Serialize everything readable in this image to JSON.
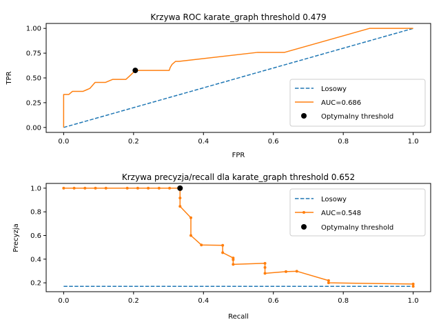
{
  "colors": {
    "random": "#1f77b4",
    "curve": "#ff7f0e",
    "optimal": "#000000"
  },
  "chart_data": [
    {
      "type": "line",
      "title": "Krzywa ROC karate_graph threshold  0.479",
      "xlabel": "FPR",
      "ylabel": "TPR",
      "xlim": [
        -0.05,
        1.05
      ],
      "ylim": [
        -0.05,
        1.05
      ],
      "xticks": [
        0.0,
        0.2,
        0.4,
        0.6,
        0.8,
        1.0
      ],
      "yticks": [
        0.0,
        0.25,
        0.5,
        0.75,
        1.0
      ],
      "xtick_labels": [
        "0.0",
        "0.2",
        "0.4",
        "0.6",
        "0.8",
        "1.0"
      ],
      "ytick_labels": [
        "0.00",
        "0.25",
        "0.50",
        "0.75",
        "1.00"
      ],
      "legend_position": "lower-right",
      "series": [
        {
          "name": "Losowy",
          "style": "dashed",
          "x": [
            0,
            1
          ],
          "y": [
            0,
            1
          ]
        },
        {
          "name": "AUC=0.686",
          "style": "solid",
          "x": [
            0,
            0,
            0.015,
            0.025,
            0.045,
            0.055,
            0.075,
            0.09,
            0.12,
            0.14,
            0.15,
            0.178,
            0.192,
            0.205,
            0.24,
            0.302,
            0.305,
            0.31,
            0.32,
            0.33,
            0.555,
            0.632,
            0.875,
            1.0
          ],
          "y": [
            0,
            0.333,
            0.333,
            0.364,
            0.364,
            0.364,
            0.394,
            0.455,
            0.455,
            0.485,
            0.485,
            0.485,
            0.53,
            0.576,
            0.576,
            0.576,
            0.606,
            0.636,
            0.667,
            0.667,
            0.758,
            0.758,
            1.0,
            1.0
          ]
        },
        {
          "name": "Optymalny threshold",
          "style": "point",
          "x": [
            0.205
          ],
          "y": [
            0.576
          ]
        }
      ]
    },
    {
      "type": "line",
      "title": "Krzywa precyzja/recall dla karate_graph threshold  0.652",
      "xlabel": "Recall",
      "ylabel": "Precyzja",
      "xlim": [
        -0.05,
        1.05
      ],
      "ylim": [
        0.125,
        1.04
      ],
      "xticks": [
        0.0,
        0.2,
        0.4,
        0.6,
        0.8,
        1.0
      ],
      "yticks": [
        0.2,
        0.4,
        0.6,
        0.8,
        1.0
      ],
      "xtick_labels": [
        "0.0",
        "0.2",
        "0.4",
        "0.6",
        "0.8",
        "1.0"
      ],
      "ytick_labels": [
        "0.2",
        "0.4",
        "0.6",
        "0.8",
        "1.0"
      ],
      "legend_position": "upper-right",
      "series": [
        {
          "name": "Losowy",
          "style": "dashed",
          "x": [
            0,
            1
          ],
          "y": [
            0.17,
            0.17
          ]
        },
        {
          "name": "AUC=0.548",
          "style": "solid-markers",
          "x": [
            0,
            0.03,
            0.061,
            0.091,
            0.121,
            0.182,
            0.212,
            0.242,
            0.273,
            0.303,
            0.333,
            0.333,
            0.333,
            0.364,
            0.364,
            0.394,
            0.455,
            0.455,
            0.485,
            0.485,
            0.485,
            0.576,
            0.576,
            0.576,
            0.636,
            0.667,
            0.758,
            0.758,
            1.0,
            1.0
          ],
          "y": [
            1.0,
            1.0,
            1.0,
            1.0,
            1.0,
            1.0,
            1.0,
            1.0,
            1.0,
            1.0,
            1.0,
            0.917,
            0.846,
            0.75,
            0.6,
            0.52,
            0.517,
            0.455,
            0.41,
            0.395,
            0.356,
            0.365,
            0.33,
            0.28,
            0.295,
            0.298,
            0.219,
            0.2,
            0.19,
            0.17
          ]
        },
        {
          "name": "Optymalny threshold",
          "style": "point",
          "x": [
            0.333
          ],
          "y": [
            1.0
          ]
        }
      ]
    }
  ]
}
